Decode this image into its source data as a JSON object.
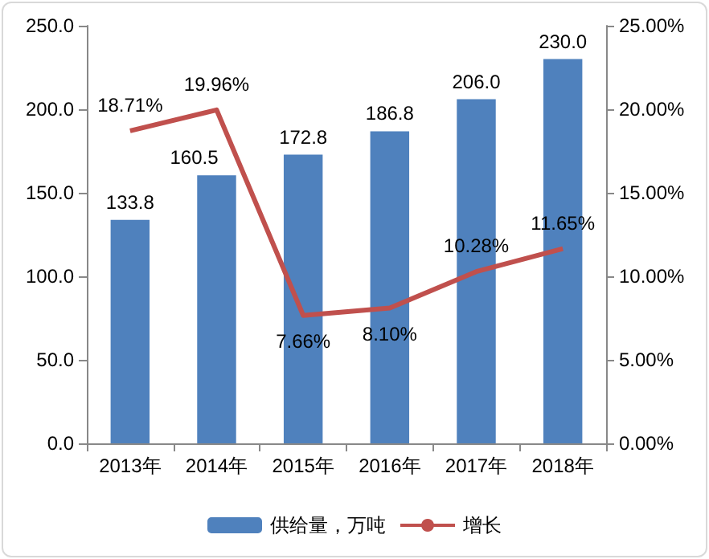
{
  "chart_data": {
    "type": "bar",
    "categories": [
      "2013年",
      "2014年",
      "2015年",
      "2016年",
      "2017年",
      "2018年"
    ],
    "series": [
      {
        "name": "供给量，万吨",
        "color": "#4f81bd",
        "values": [
          133.8,
          160.5,
          172.8,
          186.8,
          206.0,
          230.0
        ],
        "value_labels": [
          "133.8",
          "160.5",
          "172.8",
          "186.8",
          "206.0",
          "230.0"
        ]
      },
      {
        "name": "增长",
        "type": "line",
        "axis": "y2",
        "color": "#c0504d",
        "values": [
          18.71,
          19.96,
          7.66,
          8.1,
          10.28,
          11.65
        ],
        "value_labels": [
          "18.71%",
          "19.96%",
          "7.66%",
          "8.10%",
          "10.28%",
          "11.65%"
        ]
      }
    ],
    "ylim": [
      0,
      250
    ],
    "yticks": [
      {
        "value": 0,
        "label": "0.0"
      },
      {
        "value": 50,
        "label": "50.0"
      },
      {
        "value": 100,
        "label": "100.0"
      },
      {
        "value": 150,
        "label": "150.0"
      },
      {
        "value": 200,
        "label": "200.0"
      },
      {
        "value": 250,
        "label": "250.0"
      }
    ],
    "y2lim": [
      0,
      25
    ],
    "y2ticks": [
      {
        "value": 0,
        "label": "0.00%"
      },
      {
        "value": 5,
        "label": "5.00%"
      },
      {
        "value": 10,
        "label": "10.00%"
      },
      {
        "value": 15,
        "label": "15.00%"
      },
      {
        "value": 20,
        "label": "20.00%"
      },
      {
        "value": 25,
        "label": "25.00%"
      }
    ],
    "legend": "bottom",
    "grid": false,
    "marker": "none",
    "line_style": "solid"
  }
}
